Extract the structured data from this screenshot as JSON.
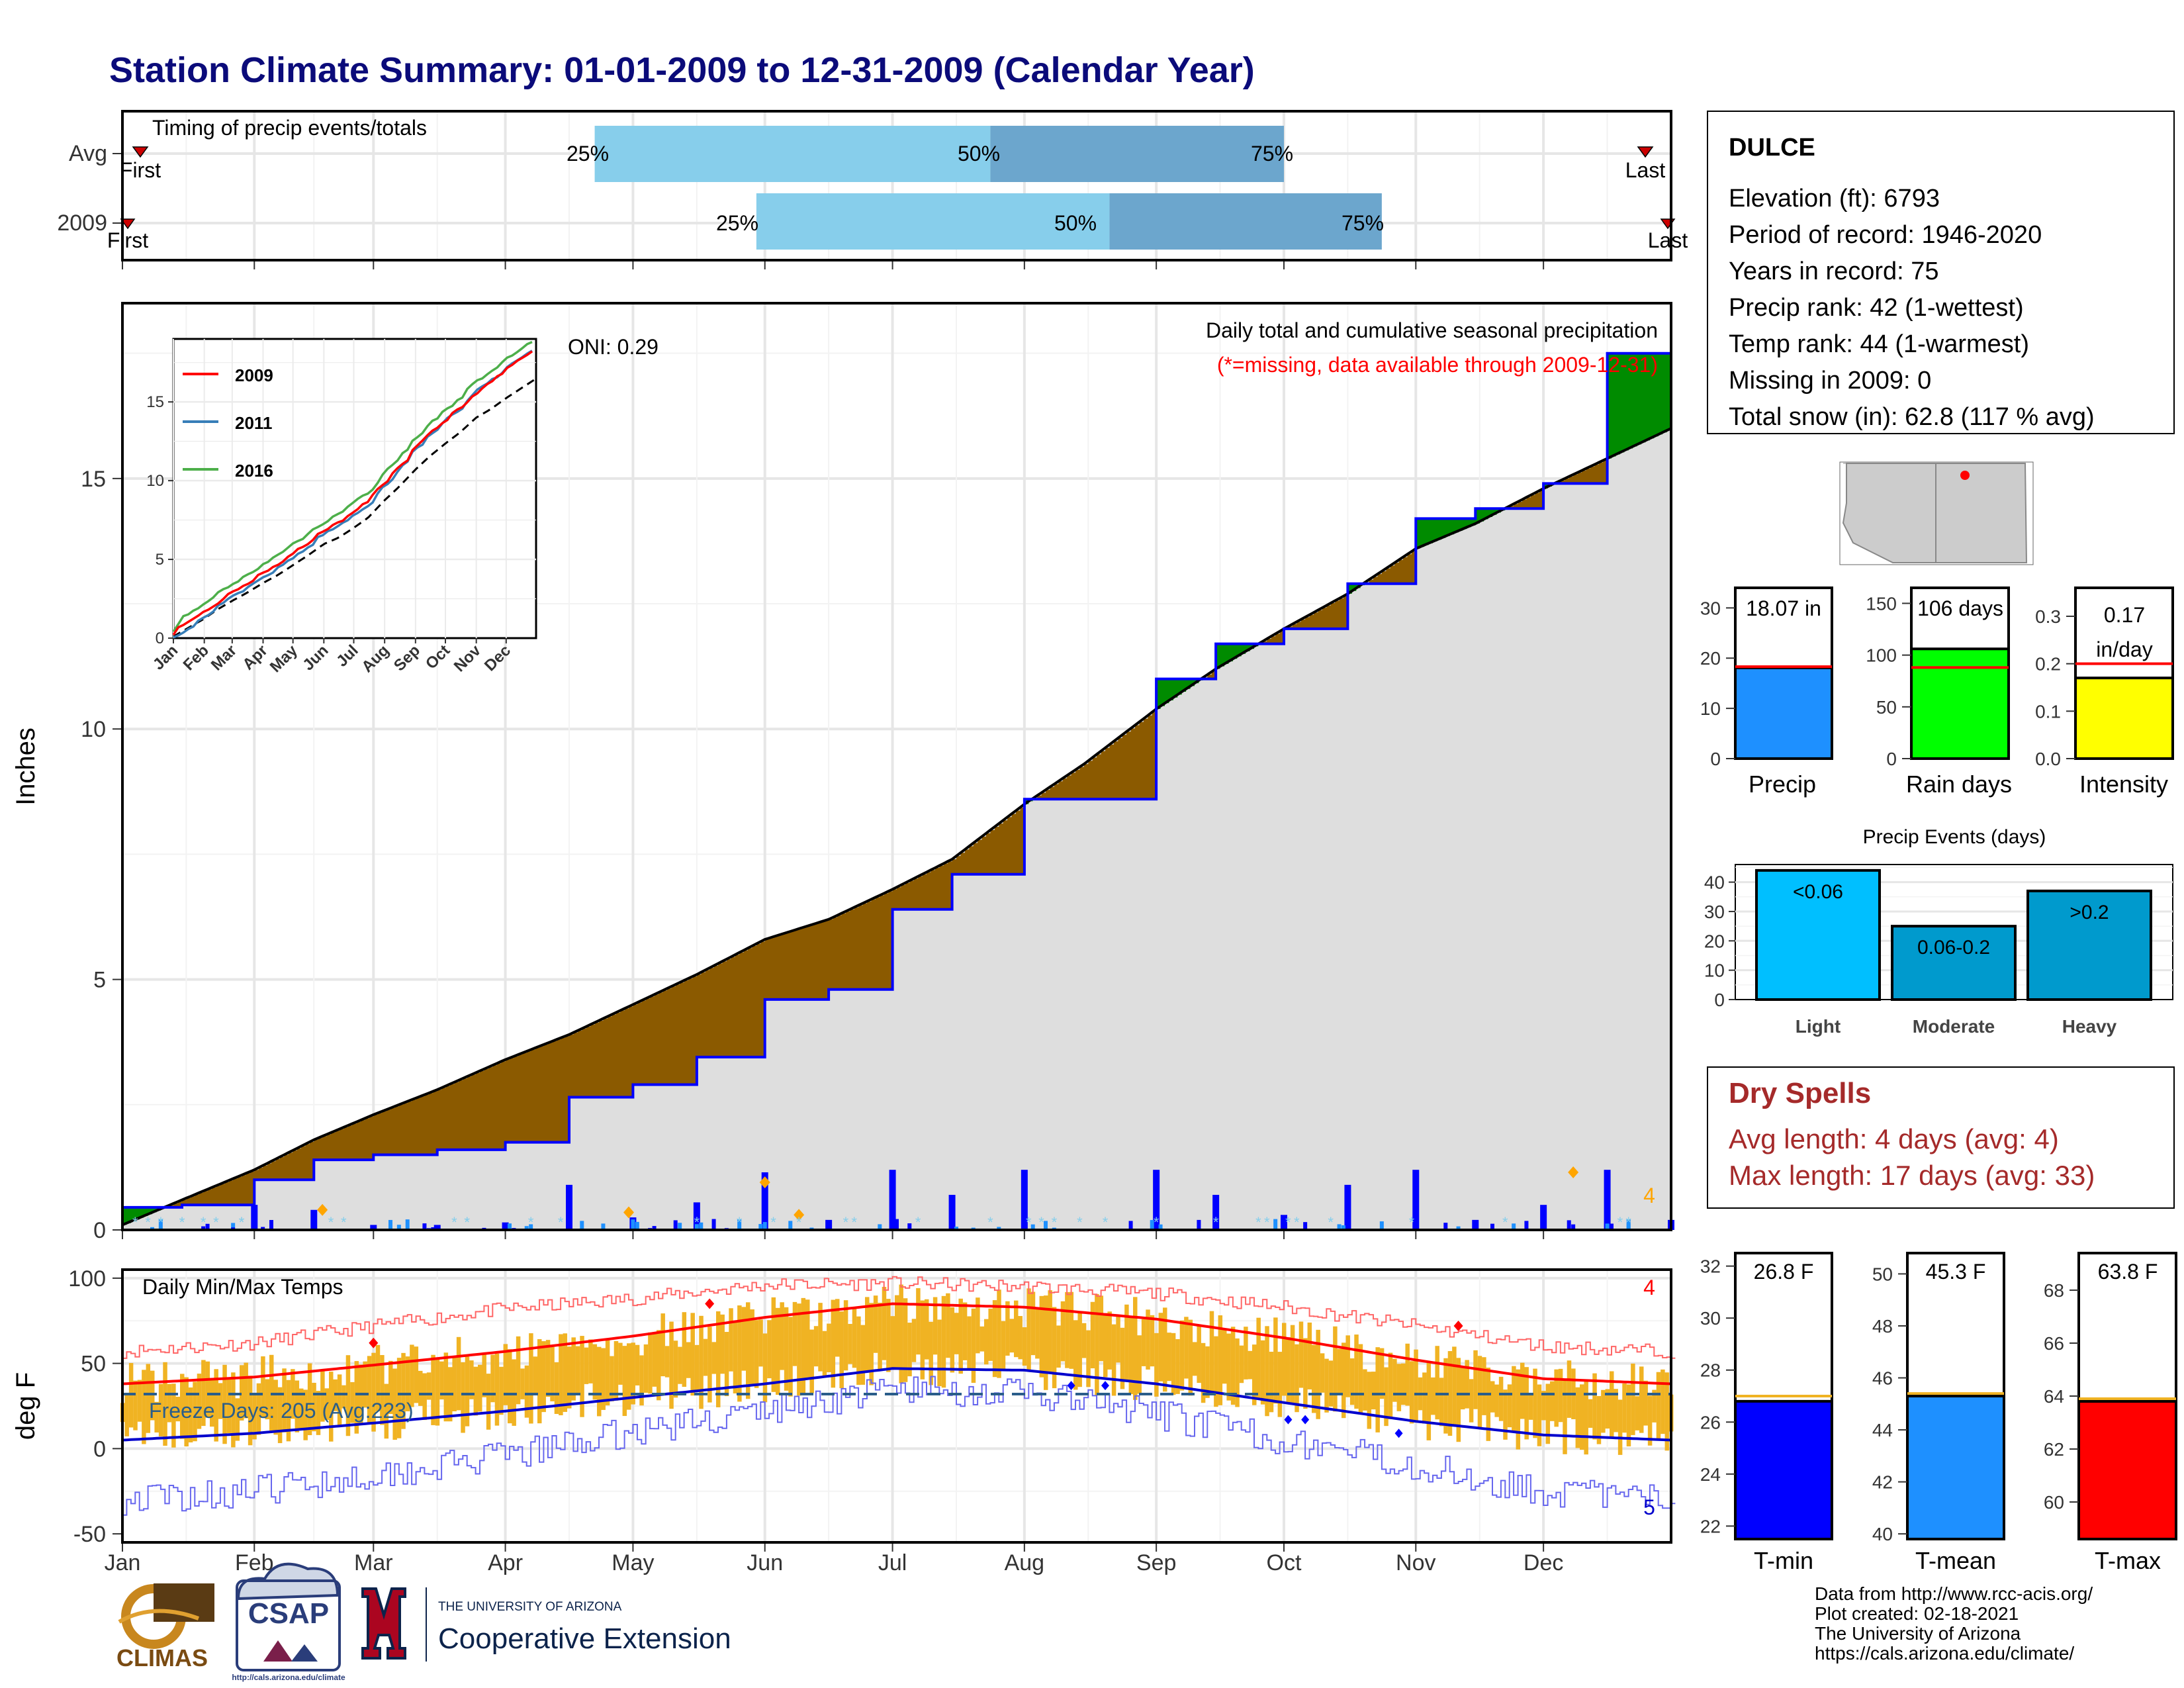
{
  "title": "Station Climate Summary: 01-01-2009 to 12-31-2009 (Calendar Year)",
  "colors": {
    "title": "#0b0b7a",
    "q_light": "#87ceeb",
    "q_dark": "#6ca6cd",
    "deficit": "#8b5a00",
    "surplus": "#008b00",
    "obs_line": "#0000ff",
    "avg_fill": "#dedede",
    "temp_band": "#f0b323",
    "tmax_line": "#ff0000",
    "tmin_line": "#0000cc",
    "precip_bar": "#1e90ff",
    "raindays_bar": "#00ff00",
    "intensity_bar": "#ffff00",
    "light_bar": "#00bfff",
    "moderate_bar": "#009acd",
    "heavy_bar": "#009acd",
    "tmin_bar": "#0000ff",
    "tmean_bar": "#1e90ff",
    "tmax_bar": "#ff0000",
    "dry_spells": "#a52a2a"
  },
  "timing": {
    "label": "Timing of precip events/totals",
    "rows": [
      {
        "name": "Avg",
        "first_label": "First",
        "last_label": "Last",
        "q25_label": "25%",
        "q50_label": "50%",
        "q75_label": "75%",
        "first_doy": 5,
        "last_doy": 357,
        "q25": 112,
        "q50": 205,
        "q75": 274
      },
      {
        "name": "2009",
        "first_label": "First",
        "last_label": "Last",
        "q25_label": "25%",
        "q50_label": "50%",
        "q75_label": "75%",
        "first_doy": 1,
        "last_doy": 365,
        "q25": 150,
        "q50": 233,
        "q75": 297
      }
    ]
  },
  "months": [
    "Jan",
    "Feb",
    "Mar",
    "Apr",
    "May",
    "Jun",
    "Jul",
    "Aug",
    "Sep",
    "Oct",
    "Nov",
    "Dec"
  ],
  "precip_panel": {
    "ylabel": "Inches",
    "yticks": [
      "0",
      "5",
      "10",
      "15"
    ],
    "header": "Daily total and cumulative seasonal precipitation",
    "missing_note": "(*=missing, data available through 2009-12-31)",
    "oni": "ONI: 0.29",
    "count_label": "4"
  },
  "inset": {
    "legend": [
      "2009",
      "2011",
      "2016"
    ],
    "yticks": [
      "0",
      "5",
      "10",
      "15"
    ],
    "xticks": [
      "Jan",
      "Feb",
      "Mar",
      "Apr",
      "May",
      "Jun",
      "Jul",
      "Aug",
      "Sep",
      "Oct",
      "Nov",
      "Dec"
    ]
  },
  "temp_panel": {
    "ylabel": "deg F",
    "label": "Daily Min/Max Temps",
    "freeze": "Freeze Days: 205 (Avg:223)",
    "yticks": [
      "100",
      "50",
      "0",
      "-50"
    ],
    "count_top": "4",
    "count_bottom": "5"
  },
  "station": {
    "name": "DULCE",
    "lines": [
      "Elevation (ft): 6793",
      "Period of record: 1946-2020",
      "Years in record: 75",
      "Precip rank: 42 (1-wettest)",
      "Temp rank: 44 (1-warmest)",
      "Missing in 2009: 0",
      "Total snow (in): 62.8 (117 % avg)"
    ]
  },
  "mini_bars": [
    {
      "label": "Precip",
      "value_label": "18.07 in",
      "yticks": [
        "0",
        "10",
        "20",
        "30"
      ]
    },
    {
      "label": "Rain days",
      "value_label": "106 days",
      "yticks": [
        "0",
        "50",
        "100",
        "150"
      ]
    },
    {
      "label": "Intensity",
      "value_label_1": "0.17",
      "value_label_2": "in/day",
      "yticks": [
        "0.0",
        "0.1",
        "0.2",
        "0.3"
      ]
    }
  ],
  "events": {
    "title": "Precip Events (days)",
    "yticks": [
      "0",
      "10",
      "20",
      "30",
      "40"
    ],
    "bars": [
      {
        "label": "Light",
        "value_label": "<0.06"
      },
      {
        "label": "Moderate",
        "value_label": "0.06-0.2"
      },
      {
        "label": "Heavy",
        "value_label": ">0.2"
      }
    ]
  },
  "dry_spells": {
    "title": "Dry Spells",
    "avg_line": "Avg length: 4 days (avg: 4)",
    "max_line": "Max length: 17 days (avg: 33)"
  },
  "temp_bars": [
    {
      "label": "T-min",
      "value_label": "26.8 F",
      "yticks": [
        "22",
        "24",
        "26",
        "28",
        "30",
        "32"
      ]
    },
    {
      "label": "T-mean",
      "value_label": "45.3 F",
      "yticks": [
        "40",
        "42",
        "44",
        "46",
        "48",
        "50"
      ]
    },
    {
      "label": "T-max",
      "value_label": "63.8 F",
      "yticks": [
        "60",
        "62",
        "64",
        "66",
        "68"
      ]
    }
  ],
  "credits": [
    "Data from http://www.rcc-acis.org/",
    "Plot created: 02-18-2021",
    "The University of Arizona",
    "https://cals.arizona.edu/climate/"
  ],
  "logos": {
    "climas": "CLIMAS",
    "csap": "CSAP",
    "csap_url": "http://cals.arizona.edu/climate",
    "ua_small": "THE UNIVERSITY OF ARIZONA",
    "ua_big": "Cooperative Extension"
  },
  "chart_data": [
    {
      "type": "area",
      "title": "Daily total and cumulative seasonal precipitation",
      "ylabel": "Inches",
      "ylim": [
        0,
        18.5
      ],
      "x": [
        1,
        15,
        32,
        46,
        60,
        75,
        91,
        106,
        121,
        136,
        152,
        167,
        182,
        196,
        213,
        227,
        244,
        258,
        274,
        289,
        305,
        319,
        335,
        350,
        365
      ],
      "series": [
        {
          "name": "2009",
          "values": [
            0.45,
            0.5,
            1.0,
            1.4,
            1.5,
            1.6,
            1.75,
            2.65,
            2.9,
            3.45,
            4.6,
            4.8,
            6.4,
            7.1,
            8.6,
            8.6,
            11.0,
            11.7,
            12.0,
            12.9,
            14.2,
            14.4,
            14.9,
            17.5,
            17.7
          ]
        },
        {
          "name": "avg",
          "values": [
            0.1,
            0.6,
            1.2,
            1.8,
            2.3,
            2.8,
            3.4,
            3.9,
            4.5,
            5.1,
            5.8,
            6.2,
            6.8,
            7.4,
            8.5,
            9.3,
            10.4,
            11.2,
            12.0,
            12.7,
            13.6,
            14.1,
            14.8,
            15.4,
            16.0
          ]
        }
      ]
    },
    {
      "type": "line",
      "title": "Daily Min/Max Temps",
      "ylabel": "deg F",
      "ylim": [
        -55,
        105
      ],
      "x": [
        1,
        32,
        60,
        91,
        121,
        152,
        182,
        213,
        244,
        274,
        305,
        335,
        365
      ],
      "series": [
        {
          "name": "avg max",
          "values": [
            38,
            42,
            49,
            57,
            66,
            77,
            85,
            83,
            76,
            65,
            52,
            41,
            38
          ]
        },
        {
          "name": "avg min",
          "values": [
            5,
            9,
            15,
            22,
            30,
            38,
            47,
            46,
            38,
            27,
            16,
            8,
            5
          ]
        },
        {
          "name": "record max",
          "values": [
            57,
            62,
            72,
            82,
            88,
            96,
            97,
            95,
            91,
            83,
            72,
            60,
            57
          ]
        },
        {
          "name": "record min",
          "values": [
            -30,
            -25,
            -15,
            -5,
            10,
            22,
            35,
            32,
            20,
            5,
            -10,
            -25,
            -30
          ]
        }
      ]
    },
    {
      "type": "bar",
      "categories": [
        "Precip"
      ],
      "values": [
        18.07
      ],
      "ylim": [
        0,
        34
      ]
    },
    {
      "type": "bar",
      "categories": [
        "Rain days"
      ],
      "values": [
        106
      ],
      "ylim": [
        0,
        165
      ]
    },
    {
      "type": "bar",
      "categories": [
        "Intensity"
      ],
      "values": [
        0.17
      ],
      "ylim": [
        0,
        0.36
      ]
    },
    {
      "type": "bar",
      "title": "Precip Events (days)",
      "categories": [
        "Light",
        "Moderate",
        "Heavy"
      ],
      "values": [
        44,
        25,
        37
      ],
      "ylim": [
        0,
        46
      ]
    },
    {
      "type": "bar",
      "categories": [
        "T-min"
      ],
      "values": [
        26.8
      ],
      "ylim": [
        21.5,
        32.5
      ]
    },
    {
      "type": "bar",
      "categories": [
        "T-mean"
      ],
      "values": [
        45.3
      ],
      "ylim": [
        39.8,
        50.8
      ]
    },
    {
      "type": "bar",
      "categories": [
        "T-max"
      ],
      "values": [
        63.8
      ],
      "ylim": [
        58.6,
        69.4
      ]
    }
  ]
}
